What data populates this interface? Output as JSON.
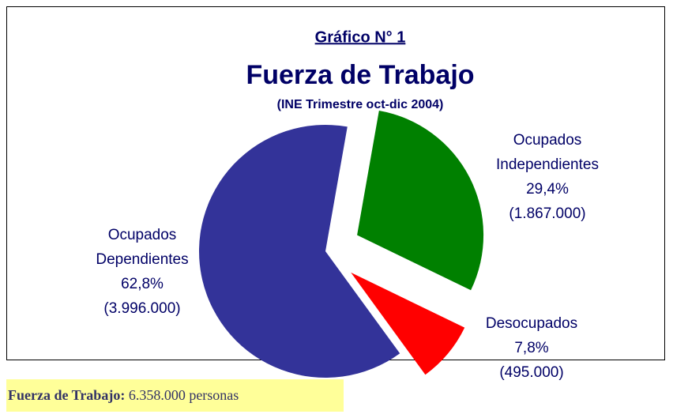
{
  "chart_data": {
    "type": "pie",
    "title": "Gráfico N° 1",
    "subtitle": "Fuerza de Trabajo",
    "note": "(INE Trimestre oct-dic 2004)",
    "categories": [
      "Ocupados Independientes",
      "Desocupados",
      "Ocupados Dependientes"
    ],
    "values": [
      29.4,
      7.8,
      62.8
    ],
    "value_labels": [
      "29,4%",
      "7,8%",
      "62,8%"
    ],
    "counts": [
      1867000,
      495000,
      3996000
    ],
    "count_labels": [
      "(1.867.000)",
      "(495.000)",
      "(3.996.000)"
    ],
    "colors": [
      "#008000",
      "#ff0000",
      "#333399"
    ]
  },
  "footer": {
    "label": "Fuerza de Trabajo:",
    "text": "6.358.000 personas"
  }
}
